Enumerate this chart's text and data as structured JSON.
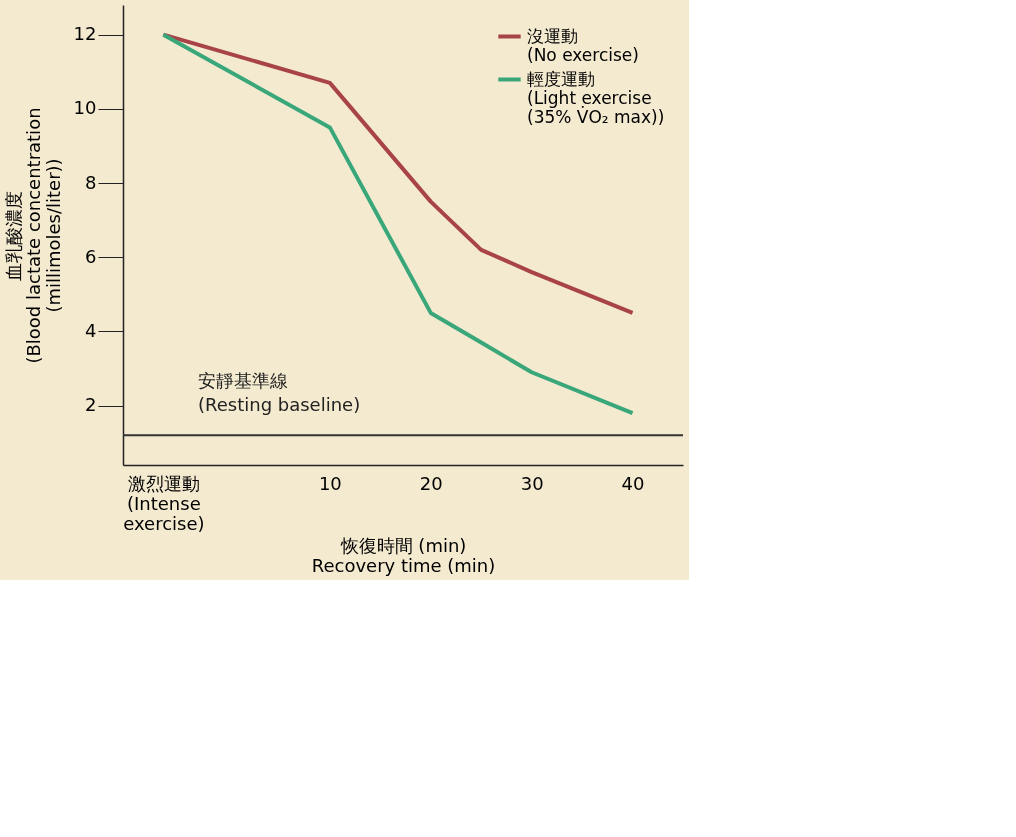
{
  "chart_data": {
    "type": "line",
    "xlabel": "恢復時間 (min)\nRecovery time (min)",
    "ylabel": "血乳酸濃度\n(Blood lactate concentration\n(millimoles/liter))",
    "series": [
      {
        "name": "沒運動\n(No exercise)",
        "color": "#a8434a",
        "x": [
          -6.5,
          10,
          20,
          25,
          30,
          40
        ],
        "values": [
          12,
          10.7,
          7.5,
          6.2,
          5.6,
          4.5
        ]
      },
      {
        "name": "輕度運動\n(Light exercise\n(35% V̇O₂ max))",
        "color": "#3aa77a",
        "x": [
          -6.5,
          10,
          20,
          25,
          30,
          40
        ],
        "values": [
          12,
          9.5,
          4.5,
          3.7,
          2.9,
          1.8
        ]
      }
    ],
    "xlim": [
      -10.5,
      45
    ],
    "xticks": [
      {
        "value": -6.5,
        "label": "激烈運動\n(Intense\nexercise)"
      },
      10,
      20,
      30,
      40
    ],
    "ylim": [
      0.4,
      12.8
    ],
    "yticks": [
      2,
      4,
      6,
      8,
      10,
      12
    ],
    "ref_lines": [
      {
        "axis": "y",
        "value": 1.2,
        "label": "安靜基準線\n(Resting baseline)",
        "color": "#333333"
      }
    ],
    "grid": false,
    "legend": "top right",
    "marker": "none",
    "line_style": "solid"
  }
}
